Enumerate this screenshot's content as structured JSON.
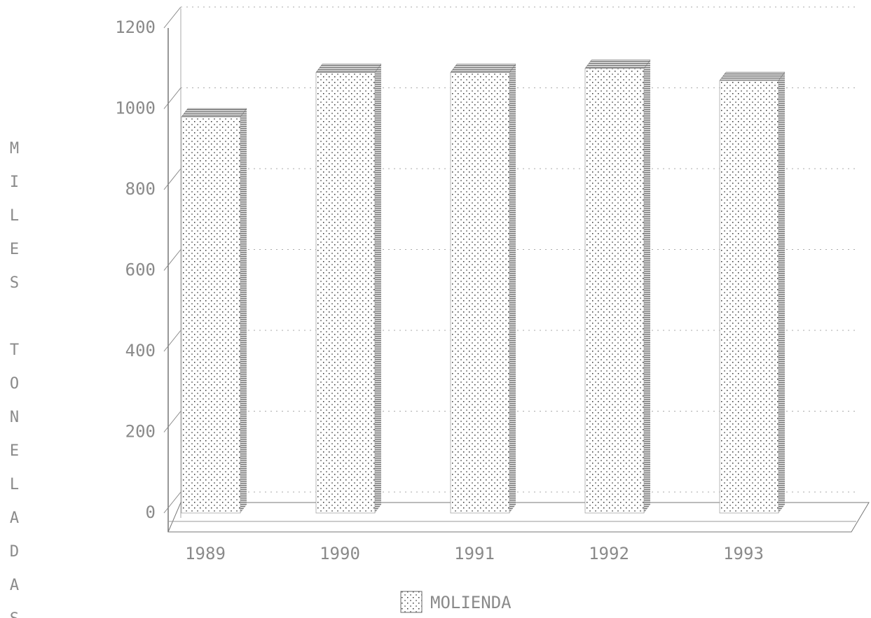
{
  "chart_data": {
    "type": "bar3d",
    "y_label": "MILES TONELADAS",
    "categories": [
      "1989",
      "1990",
      "1991",
      "1992",
      "1993"
    ],
    "series": [
      {
        "name": "MOLIENDA",
        "color": "#555555",
        "values": [
          980,
          1090,
          1090,
          1100,
          1070
        ]
      }
    ],
    "ylim": [
      0,
      1200
    ],
    "yticks": [
      0,
      200,
      400,
      600,
      800,
      1000,
      1200
    ],
    "grid": true
  }
}
